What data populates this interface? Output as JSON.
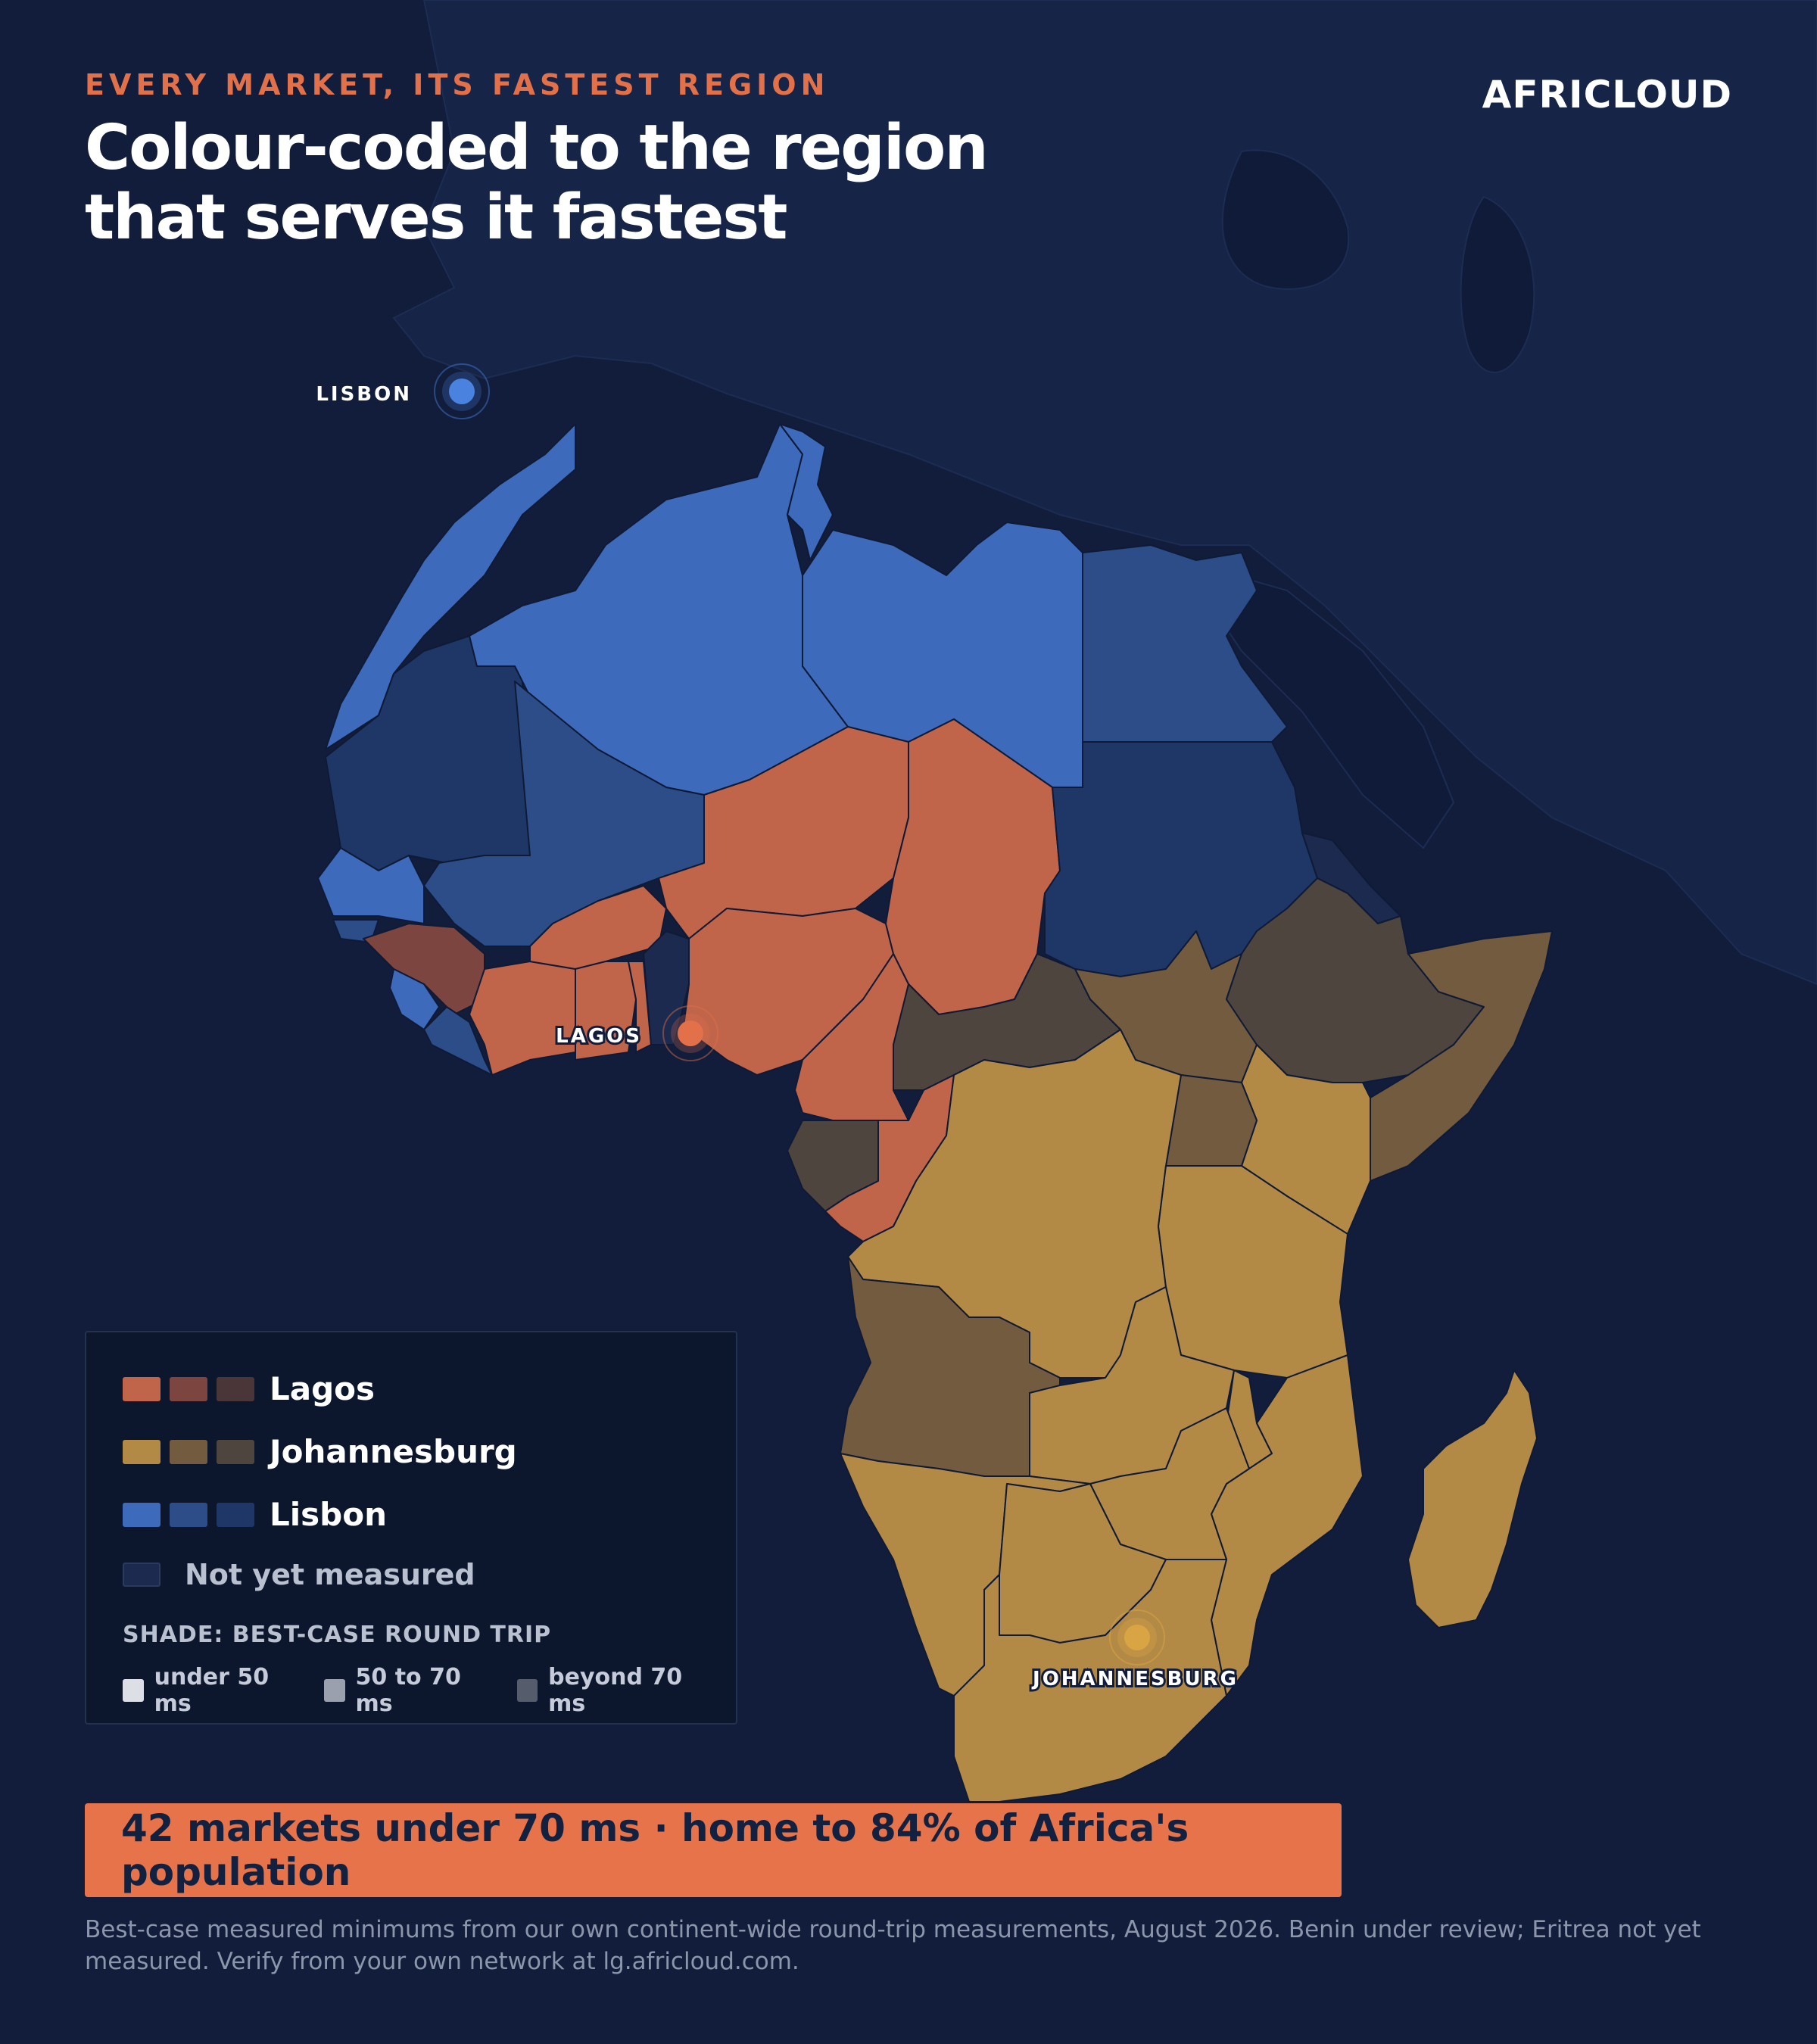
{
  "header": {
    "eyebrow": "EVERY MARKET, ITS FASTEST REGION",
    "title": "Colour-coded to the region that serves it fastest",
    "brand": "AFRICLOUD"
  },
  "regions": [
    {
      "name": "Lagos",
      "color": "#e2714a"
    },
    {
      "name": "Johannesburg",
      "color": "#d9a544"
    },
    {
      "name": "Lisbon",
      "color": "#4a82e0"
    }
  ],
  "cities": {
    "lisbon": "LISBON",
    "lagos": "LAGOS",
    "johannesburg": "JOHANNESBURG"
  },
  "legend": {
    "lagos": "Lagos",
    "johannesburg": "Johannesburg",
    "lisbon": "Lisbon",
    "not_measured": "Not yet measured",
    "shade_title": "SHADE: BEST-CASE ROUND TRIP",
    "shade_under": "under 50 ms",
    "shade_mid": "50 to 70 ms",
    "shade_beyond": "beyond 70 ms"
  },
  "banner": "42 markets under 70 ms · home to 84% of Africa's population",
  "footnote": "Best-case measured minimums from our own continent-wide round-trip measurements, August 2026. Benin under review; Eritrea not yet measured. Verify from your own network at lg.africloud.com.",
  "colors": {
    "background": "#111d3b",
    "lagos_shades": [
      "#c0644a",
      "#7d4540",
      "#4a3538"
    ],
    "johannesburg_shades": [
      "#b38a45",
      "#735b3f",
      "#4e453f"
    ],
    "lisbon_shades": [
      "#3d6abb",
      "#2c4d88",
      "#1f3766"
    ],
    "not_measured": "#1b2a4e"
  }
}
